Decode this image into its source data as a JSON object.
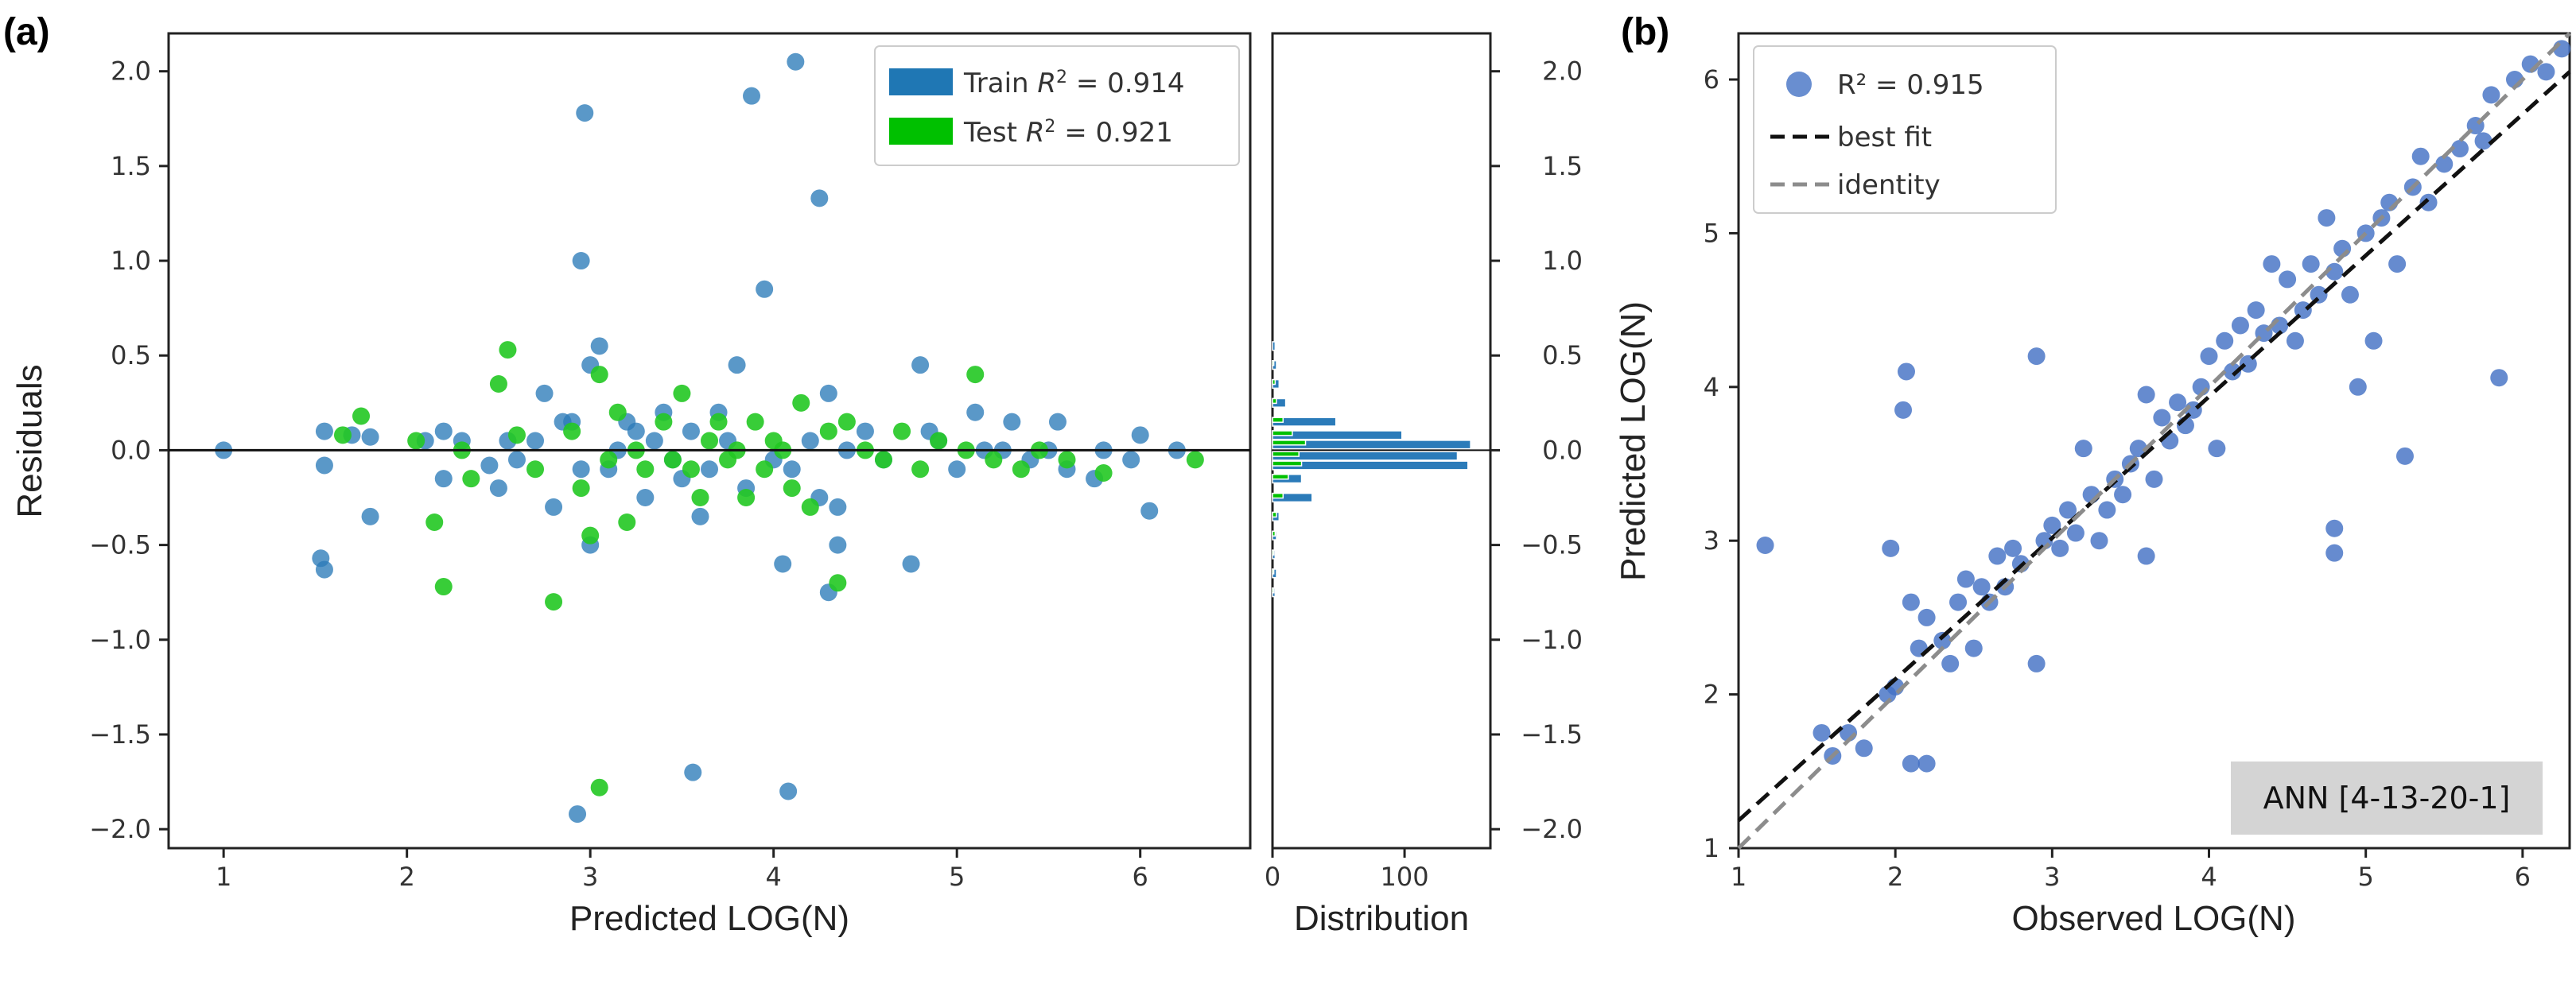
{
  "chart_data": [
    {
      "id": "a-residuals",
      "panel_label": "(a)",
      "type": "scatter",
      "xlabel": "Predicted LOG(N)",
      "ylabel": "Residuals",
      "xlim": [
        0.7,
        6.6
      ],
      "ylim": [
        -2.1,
        2.2
      ],
      "xticks": [
        "1",
        "2",
        "3",
        "4",
        "5",
        "6"
      ],
      "yticks": [
        "−2.0",
        "−1.5",
        "−1.0",
        "−0.5",
        "0.0",
        "0.5",
        "1.0",
        "1.5",
        "2.0"
      ],
      "reference_line": 0,
      "legend": [
        {
          "name": "Train",
          "r2": "0.914",
          "color": "#1f77b4"
        },
        {
          "name": "Test",
          "r2": "0.921",
          "color": "#00c000"
        }
      ],
      "series": [
        {
          "name": "Train",
          "color": "#2b7bb9",
          "points": [
            [
              1.0,
              0.0
            ],
            [
              1.53,
              -0.57
            ],
            [
              1.55,
              -0.63
            ],
            [
              1.55,
              0.1
            ],
            [
              1.55,
              -0.08
            ],
            [
              1.7,
              0.08
            ],
            [
              1.8,
              0.07
            ],
            [
              1.8,
              -0.35
            ],
            [
              2.1,
              0.05
            ],
            [
              2.2,
              -0.15
            ],
            [
              2.3,
              0.05
            ],
            [
              2.2,
              0.1
            ],
            [
              2.45,
              -0.08
            ],
            [
              2.5,
              -0.2
            ],
            [
              2.55,
              0.05
            ],
            [
              2.6,
              -0.05
            ],
            [
              2.7,
              0.05
            ],
            [
              2.75,
              0.3
            ],
            [
              2.8,
              -0.3
            ],
            [
              2.85,
              0.15
            ],
            [
              2.9,
              0.15
            ],
            [
              2.95,
              1.0
            ],
            [
              2.97,
              1.78
            ],
            [
              2.95,
              -0.1
            ],
            [
              3.0,
              0.45
            ],
            [
              3.0,
              -0.5
            ],
            [
              3.05,
              0.55
            ],
            [
              3.1,
              -0.1
            ],
            [
              3.15,
              0.0
            ],
            [
              3.2,
              0.15
            ],
            [
              3.25,
              0.1
            ],
            [
              3.3,
              -0.25
            ],
            [
              3.35,
              0.05
            ],
            [
              3.4,
              0.2
            ],
            [
              3.45,
              -0.05
            ],
            [
              3.5,
              -0.15
            ],
            [
              3.55,
              0.1
            ],
            [
              3.6,
              -0.35
            ],
            [
              3.65,
              -0.1
            ],
            [
              3.7,
              0.2
            ],
            [
              3.75,
              0.05
            ],
            [
              3.8,
              0.45
            ],
            [
              3.85,
              -0.2
            ],
            [
              3.88,
              1.87
            ],
            [
              3.95,
              0.85
            ],
            [
              4.0,
              -0.05
            ],
            [
              4.05,
              -0.6
            ],
            [
              4.1,
              -0.1
            ],
            [
              4.12,
              2.05
            ],
            [
              4.2,
              0.05
            ],
            [
              4.25,
              1.33
            ],
            [
              4.25,
              -0.25
            ],
            [
              4.3,
              -0.75
            ],
            [
              4.3,
              0.3
            ],
            [
              4.35,
              -0.5
            ],
            [
              4.35,
              -0.3
            ],
            [
              4.4,
              0.0
            ],
            [
              4.5,
              0.1
            ],
            [
              4.6,
              -0.05
            ],
            [
              4.75,
              -0.6
            ],
            [
              4.8,
              0.45
            ],
            [
              4.85,
              0.1
            ],
            [
              4.9,
              0.05
            ],
            [
              5.0,
              -0.1
            ],
            [
              5.1,
              0.2
            ],
            [
              5.15,
              0.0
            ],
            [
              5.25,
              0.0
            ],
            [
              5.3,
              0.15
            ],
            [
              5.4,
              -0.05
            ],
            [
              5.5,
              0.0
            ],
            [
              5.55,
              0.15
            ],
            [
              5.6,
              -0.1
            ],
            [
              5.75,
              -0.15
            ],
            [
              5.8,
              0.0
            ],
            [
              5.95,
              -0.05
            ],
            [
              6.0,
              0.08
            ],
            [
              6.05,
              -0.32
            ],
            [
              6.2,
              0.0
            ],
            [
              2.93,
              -1.92
            ],
            [
              3.56,
              -1.7
            ],
            [
              4.08,
              -1.8
            ]
          ]
        },
        {
          "name": "Test",
          "color": "#22c822",
          "points": [
            [
              1.65,
              0.08
            ],
            [
              1.75,
              0.18
            ],
            [
              2.05,
              0.05
            ],
            [
              2.15,
              -0.38
            ],
            [
              2.2,
              -0.72
            ],
            [
              2.3,
              0.0
            ],
            [
              2.35,
              -0.15
            ],
            [
              2.5,
              0.35
            ],
            [
              2.55,
              0.53
            ],
            [
              2.6,
              0.08
            ],
            [
              2.7,
              -0.1
            ],
            [
              2.8,
              -0.8
            ],
            [
              2.9,
              0.1
            ],
            [
              2.95,
              -0.2
            ],
            [
              3.0,
              -0.45
            ],
            [
              3.05,
              0.4
            ],
            [
              3.05,
              -1.78
            ],
            [
              3.1,
              -0.05
            ],
            [
              3.15,
              0.2
            ],
            [
              3.2,
              -0.38
            ],
            [
              3.25,
              0.0
            ],
            [
              3.3,
              -0.1
            ],
            [
              3.4,
              0.15
            ],
            [
              3.45,
              -0.05
            ],
            [
              3.5,
              0.3
            ],
            [
              3.55,
              -0.1
            ],
            [
              3.6,
              -0.25
            ],
            [
              3.65,
              0.05
            ],
            [
              3.7,
              0.15
            ],
            [
              3.75,
              -0.05
            ],
            [
              3.8,
              0.0
            ],
            [
              3.85,
              -0.25
            ],
            [
              3.9,
              0.15
            ],
            [
              3.95,
              -0.1
            ],
            [
              4.0,
              0.05
            ],
            [
              4.05,
              0.0
            ],
            [
              4.1,
              -0.2
            ],
            [
              4.15,
              0.25
            ],
            [
              4.2,
              -0.3
            ],
            [
              4.3,
              0.1
            ],
            [
              4.35,
              -0.7
            ],
            [
              4.4,
              0.15
            ],
            [
              4.5,
              0.0
            ],
            [
              4.6,
              -0.05
            ],
            [
              4.7,
              0.1
            ],
            [
              4.8,
              -0.1
            ],
            [
              4.9,
              0.05
            ],
            [
              5.05,
              0.0
            ],
            [
              5.1,
              0.4
            ],
            [
              5.2,
              -0.05
            ],
            [
              5.35,
              -0.1
            ],
            [
              5.45,
              0.0
            ],
            [
              5.6,
              -0.05
            ],
            [
              5.8,
              -0.12
            ],
            [
              6.3,
              -0.05
            ]
          ]
        }
      ]
    },
    {
      "id": "a-distribution",
      "type": "bar",
      "orientation": "horizontal",
      "xlabel": "Distribution",
      "xlim": [
        0,
        165
      ],
      "ylim": [
        -2.1,
        2.2
      ],
      "xticks": [
        "0",
        "100"
      ],
      "bin_centers": [
        0.55,
        0.45,
        0.35,
        0.25,
        0.15,
        0.08,
        0.03,
        -0.03,
        -0.08,
        -0.15,
        -0.25,
        -0.35,
        -0.45,
        -0.55,
        -0.65,
        -0.75
      ],
      "series": [
        {
          "name": "Train",
          "color": "#2b7bb9",
          "values": [
            2,
            3,
            5,
            10,
            48,
            98,
            150,
            140,
            148,
            22,
            30,
            5,
            3,
            2,
            3,
            2
          ]
        },
        {
          "name": "Test",
          "color": "#00c000",
          "values": [
            0,
            1,
            2,
            3,
            8,
            15,
            25,
            20,
            22,
            12,
            8,
            3,
            2,
            1,
            1,
            1
          ]
        }
      ]
    },
    {
      "id": "b-parity",
      "panel_label": "(b)",
      "type": "scatter",
      "xlabel": "Observed LOG(N)",
      "ylabel": "Predicted LOG(N)",
      "xlim": [
        1.0,
        6.3
      ],
      "ylim": [
        1.0,
        6.3
      ],
      "xticks": [
        "1",
        "2",
        "3",
        "4",
        "5",
        "6"
      ],
      "yticks": [
        "1",
        "2",
        "3",
        "4",
        "5",
        "6"
      ],
      "legend": [
        {
          "name": "R² = 0.915",
          "kind": "points",
          "color": "#4472c4"
        },
        {
          "name": "best fit",
          "kind": "line",
          "color": "#111111"
        },
        {
          "name": "identity",
          "kind": "line",
          "color": "#8c8c8c"
        }
      ],
      "lines": [
        {
          "name": "best fit",
          "color": "#111111",
          "from": [
            1.0,
            1.18
          ],
          "to": [
            6.3,
            6.05
          ]
        },
        {
          "name": "identity",
          "color": "#8c8c8c",
          "from": [
            1.0,
            1.0
          ],
          "to": [
            6.3,
            6.3
          ]
        }
      ],
      "annotation": "ANN [4-13-20-1]",
      "series": [
        {
          "name": "R² = 0.915",
          "color": "#4472c4",
          "points": [
            [
              1.17,
              2.97
            ],
            [
              1.53,
              1.75
            ],
            [
              1.6,
              1.6
            ],
            [
              1.7,
              1.75
            ],
            [
              1.8,
              1.65
            ],
            [
              1.95,
              2.0
            ],
            [
              1.97,
              2.95
            ],
            [
              2.0,
              2.05
            ],
            [
              2.05,
              3.85
            ],
            [
              2.07,
              4.1
            ],
            [
              2.1,
              2.6
            ],
            [
              2.1,
              1.55
            ],
            [
              2.15,
              2.3
            ],
            [
              2.2,
              1.55
            ],
            [
              2.2,
              2.5
            ],
            [
              2.3,
              2.35
            ],
            [
              2.35,
              2.2
            ],
            [
              2.4,
              2.6
            ],
            [
              2.45,
              2.75
            ],
            [
              2.5,
              2.3
            ],
            [
              2.55,
              2.7
            ],
            [
              2.6,
              2.6
            ],
            [
              2.65,
              2.9
            ],
            [
              2.7,
              2.7
            ],
            [
              2.75,
              2.95
            ],
            [
              2.8,
              2.85
            ],
            [
              2.9,
              4.2
            ],
            [
              2.9,
              2.2
            ],
            [
              2.95,
              3.0
            ],
            [
              3.0,
              3.1
            ],
            [
              3.05,
              2.95
            ],
            [
              3.1,
              3.2
            ],
            [
              3.15,
              3.05
            ],
            [
              3.2,
              3.6
            ],
            [
              3.25,
              3.3
            ],
            [
              3.3,
              3.0
            ],
            [
              3.35,
              3.2
            ],
            [
              3.4,
              3.4
            ],
            [
              3.45,
              3.3
            ],
            [
              3.5,
              3.5
            ],
            [
              3.55,
              3.6
            ],
            [
              3.6,
              3.95
            ],
            [
              3.6,
              2.9
            ],
            [
              3.65,
              3.4
            ],
            [
              3.7,
              3.8
            ],
            [
              3.75,
              3.65
            ],
            [
              3.8,
              3.9
            ],
            [
              3.85,
              3.75
            ],
            [
              3.9,
              3.85
            ],
            [
              3.95,
              4.0
            ],
            [
              4.0,
              4.2
            ],
            [
              4.05,
              3.6
            ],
            [
              4.1,
              4.3
            ],
            [
              4.15,
              4.1
            ],
            [
              4.2,
              4.4
            ],
            [
              4.25,
              4.15
            ],
            [
              4.3,
              4.5
            ],
            [
              4.35,
              4.35
            ],
            [
              4.4,
              4.8
            ],
            [
              4.45,
              4.4
            ],
            [
              4.5,
              4.7
            ],
            [
              4.55,
              4.3
            ],
            [
              4.6,
              4.5
            ],
            [
              4.65,
              4.8
            ],
            [
              4.7,
              4.6
            ],
            [
              4.75,
              5.1
            ],
            [
              4.8,
              4.75
            ],
            [
              4.8,
              2.92
            ],
            [
              4.8,
              3.08
            ],
            [
              4.85,
              4.9
            ],
            [
              4.9,
              4.6
            ],
            [
              4.95,
              4.0
            ],
            [
              5.0,
              5.0
            ],
            [
              5.05,
              4.3
            ],
            [
              5.1,
              5.1
            ],
            [
              5.15,
              5.2
            ],
            [
              5.2,
              4.8
            ],
            [
              5.25,
              3.55
            ],
            [
              5.3,
              5.3
            ],
            [
              5.35,
              5.5
            ],
            [
              5.4,
              5.2
            ],
            [
              5.5,
              5.45
            ],
            [
              5.6,
              5.55
            ],
            [
              5.7,
              5.7
            ],
            [
              5.75,
              5.6
            ],
            [
              5.8,
              5.9
            ],
            [
              5.85,
              4.06
            ],
            [
              5.95,
              6.0
            ],
            [
              6.05,
              6.1
            ],
            [
              6.15,
              6.05
            ],
            [
              6.25,
              6.2
            ]
          ]
        }
      ]
    }
  ]
}
